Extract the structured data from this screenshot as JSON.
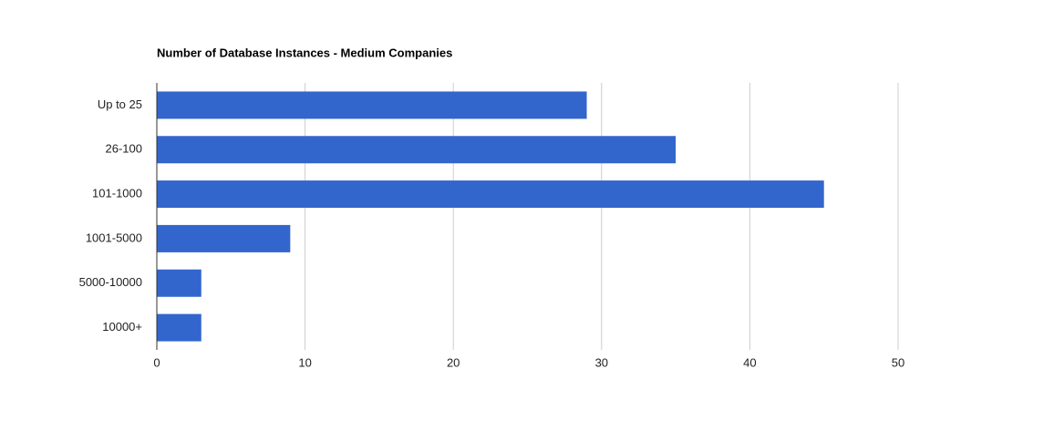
{
  "chart_data": {
    "type": "bar",
    "orientation": "horizontal",
    "title": "Number of Database Instances - Medium Companies",
    "categories": [
      "Up to 25",
      "26-100",
      "101-1000",
      "1001-5000",
      "5000-10000",
      "10000+"
    ],
    "values": [
      29,
      35,
      45,
      9,
      3,
      3
    ],
    "color": "#3366cc",
    "xlim": [
      0,
      50
    ],
    "xticks": [
      0,
      10,
      20,
      30,
      40,
      50
    ],
    "grid": true
  }
}
